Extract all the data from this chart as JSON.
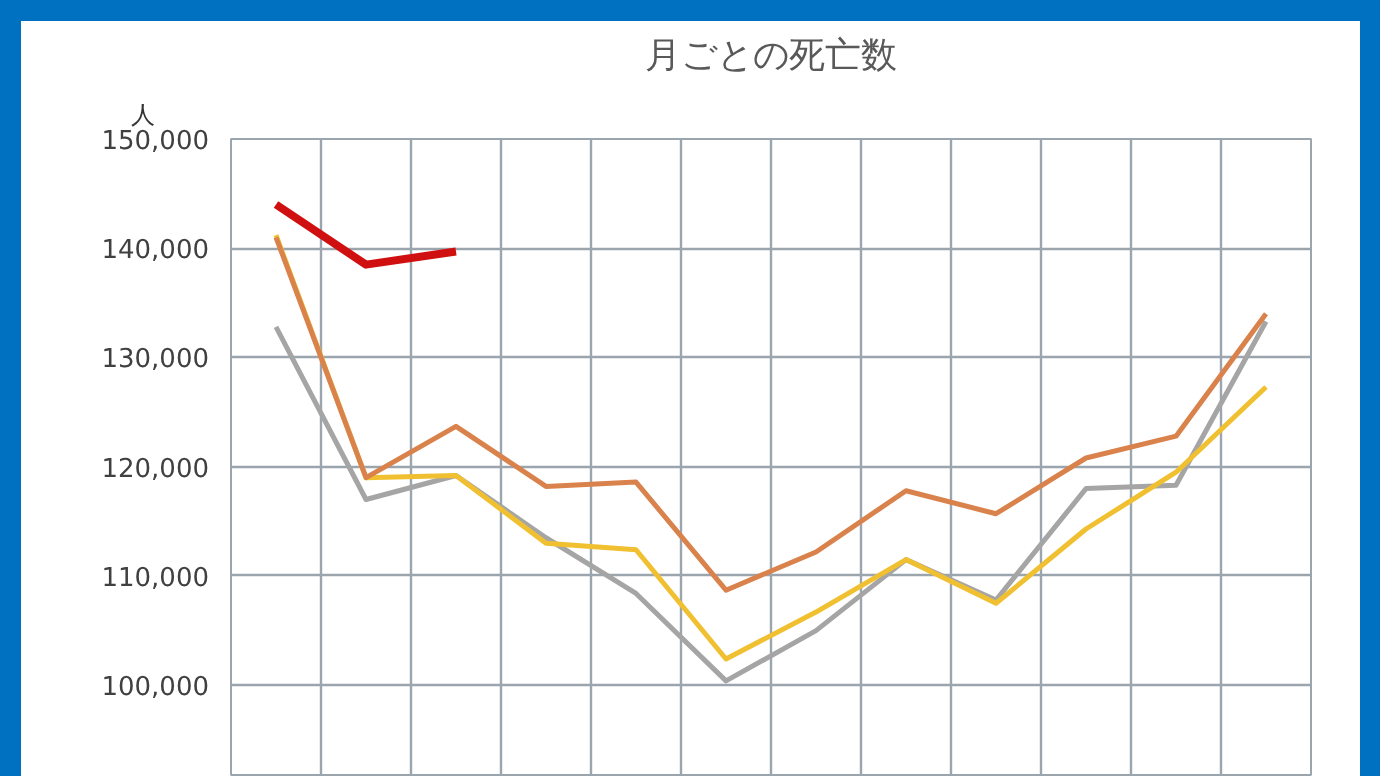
{
  "chart_data": {
    "type": "line",
    "title": "月ごとの死亡数",
    "ylabel": "人",
    "categories": [
      null,
      null,
      null,
      null,
      null,
      null,
      null,
      null,
      null,
      null,
      null,
      null
    ],
    "series": [
      {
        "color": "#a5a5a5",
        "values": [
          132800,
          117000,
          119200,
          113500,
          108400,
          100400,
          105000,
          111500,
          107800,
          118000,
          118300,
          133300
        ]
      },
      {
        "color": "#f0c030",
        "values": [
          141200,
          119000,
          119200,
          113000,
          112400,
          102400,
          106700,
          111500,
          107500,
          114300,
          119500,
          127300
        ]
      },
      {
        "color": "#d9824b",
        "values": [
          141000,
          119000,
          123700,
          118200,
          118600,
          108700,
          112200,
          117800,
          115700,
          120800,
          122800,
          134000
        ]
      },
      {
        "color": "#d01010",
        "values": [
          144000,
          138500,
          139700,
          null,
          null,
          null,
          null,
          null,
          null,
          null,
          null,
          null
        ]
      }
    ],
    "ylim": [
      91600,
      150000
    ],
    "yticks": [
      {
        "value": 100000,
        "label": "100,000"
      },
      {
        "value": 110000,
        "label": "110,000"
      },
      {
        "value": 120000,
        "label": "120,000"
      },
      {
        "value": 130000,
        "label": "130,000"
      },
      {
        "value": 140000,
        "label": "140,000"
      },
      {
        "value": 150000,
        "label": "150,000"
      }
    ],
    "grid": true,
    "tick_labels": "y",
    "marker": "none",
    "line_style": "solid"
  }
}
